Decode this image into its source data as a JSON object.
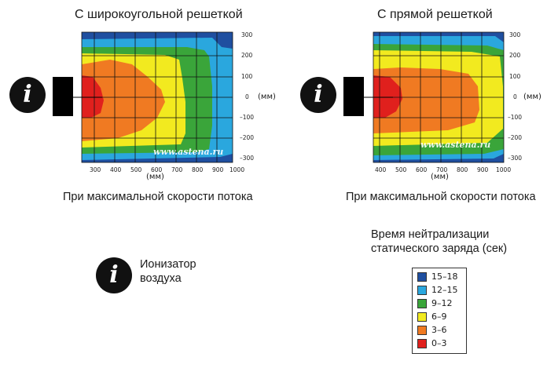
{
  "left_panel": {
    "title": "С широкоугольной решеткой",
    "caption": "При максимальной скорости потока",
    "x_ticks": [
      "300",
      "400",
      "500",
      "600",
      "700",
      "800",
      "900",
      "1000"
    ],
    "y_ticks": [
      "300",
      "200",
      "100",
      "0",
      "–100",
      "–200",
      "–300"
    ],
    "x_unit": "(мм)",
    "y_unit": "(мм)",
    "watermark": "www.astena.ru"
  },
  "right_panel": {
    "title": "С прямой решеткой",
    "caption": "При максимальной скорости потока",
    "x_ticks": [
      "400",
      "500",
      "600",
      "700",
      "800",
      "900",
      "1000"
    ],
    "y_ticks": [
      "300",
      "200",
      "100",
      "0",
      "–100",
      "–200",
      "–300"
    ],
    "x_unit": "(мм)",
    "y_unit": "(мм)",
    "watermark": "www.astena.ru"
  },
  "icon_glyph": "i",
  "icon_legend_label": "Ионизатор воздуха",
  "legend": {
    "title": "Время нейтрализации статического заряда (сек)",
    "items": [
      {
        "label": "15–18",
        "color": "#1f4fa0"
      },
      {
        "label": "12–15",
        "color": "#2aa7de"
      },
      {
        "label": "9–12",
        "color": "#3aa53a"
      },
      {
        "label": "6–9",
        "color": "#f2ea1f"
      },
      {
        "label": "3–6",
        "color": "#f07a22"
      },
      {
        "label": "0–3",
        "color": "#e0201d"
      }
    ]
  }
}
